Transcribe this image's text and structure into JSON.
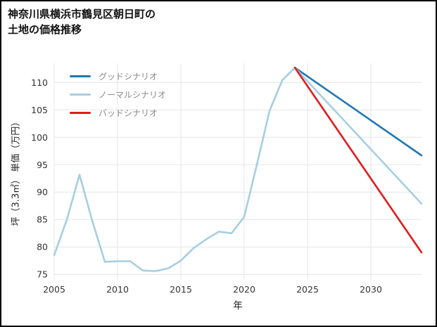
{
  "header": {
    "title_line1": "神奈川県横浜市鶴見区朝日町の",
    "title_line2": "土地の価格推移"
  },
  "chart_data": {
    "type": "line",
    "title": "神奈川県横浜市鶴見区朝日町の土地の価格推移",
    "xlabel": "年",
    "ylabel": "坪（3.3㎡） 単価（万円）",
    "xlim": [
      2005,
      2034
    ],
    "ylim": [
      74,
      113.5
    ],
    "xticks": [
      2005,
      2010,
      2015,
      2020,
      2025,
      2030
    ],
    "yticks": [
      75,
      80,
      85,
      90,
      95,
      100,
      105,
      110
    ],
    "grid": true,
    "grid_color": "#e6e6e6",
    "legend_position": "upper left",
    "series": [
      {
        "name": "グッドシナリオ",
        "color": "#1f77b4",
        "width": 2.6,
        "x": [
          2024,
          2034
        ],
        "y": [
          112.7,
          96.7
        ]
      },
      {
        "name": "ノーマルシナリオ",
        "color": "#a6cee3",
        "width": 2.6,
        "x": [
          2005,
          2006,
          2007,
          2008,
          2009,
          2010,
          2011,
          2012,
          2013,
          2014,
          2015,
          2016,
          2017,
          2018,
          2019,
          2020,
          2021,
          2022,
          2023,
          2024,
          2034
        ],
        "y": [
          78.5,
          85.0,
          93.2,
          84.8,
          77.3,
          77.4,
          77.4,
          75.7,
          75.6,
          76.1,
          77.5,
          79.8,
          81.4,
          82.8,
          82.5,
          85.5,
          95.0,
          104.8,
          110.4,
          112.7,
          87.9
        ]
      },
      {
        "name": "バッドシナリオ",
        "color": "#e31a1c",
        "width": 2.6,
        "x": [
          2024,
          2034
        ],
        "y": [
          112.7,
          79.0
        ]
      }
    ]
  }
}
